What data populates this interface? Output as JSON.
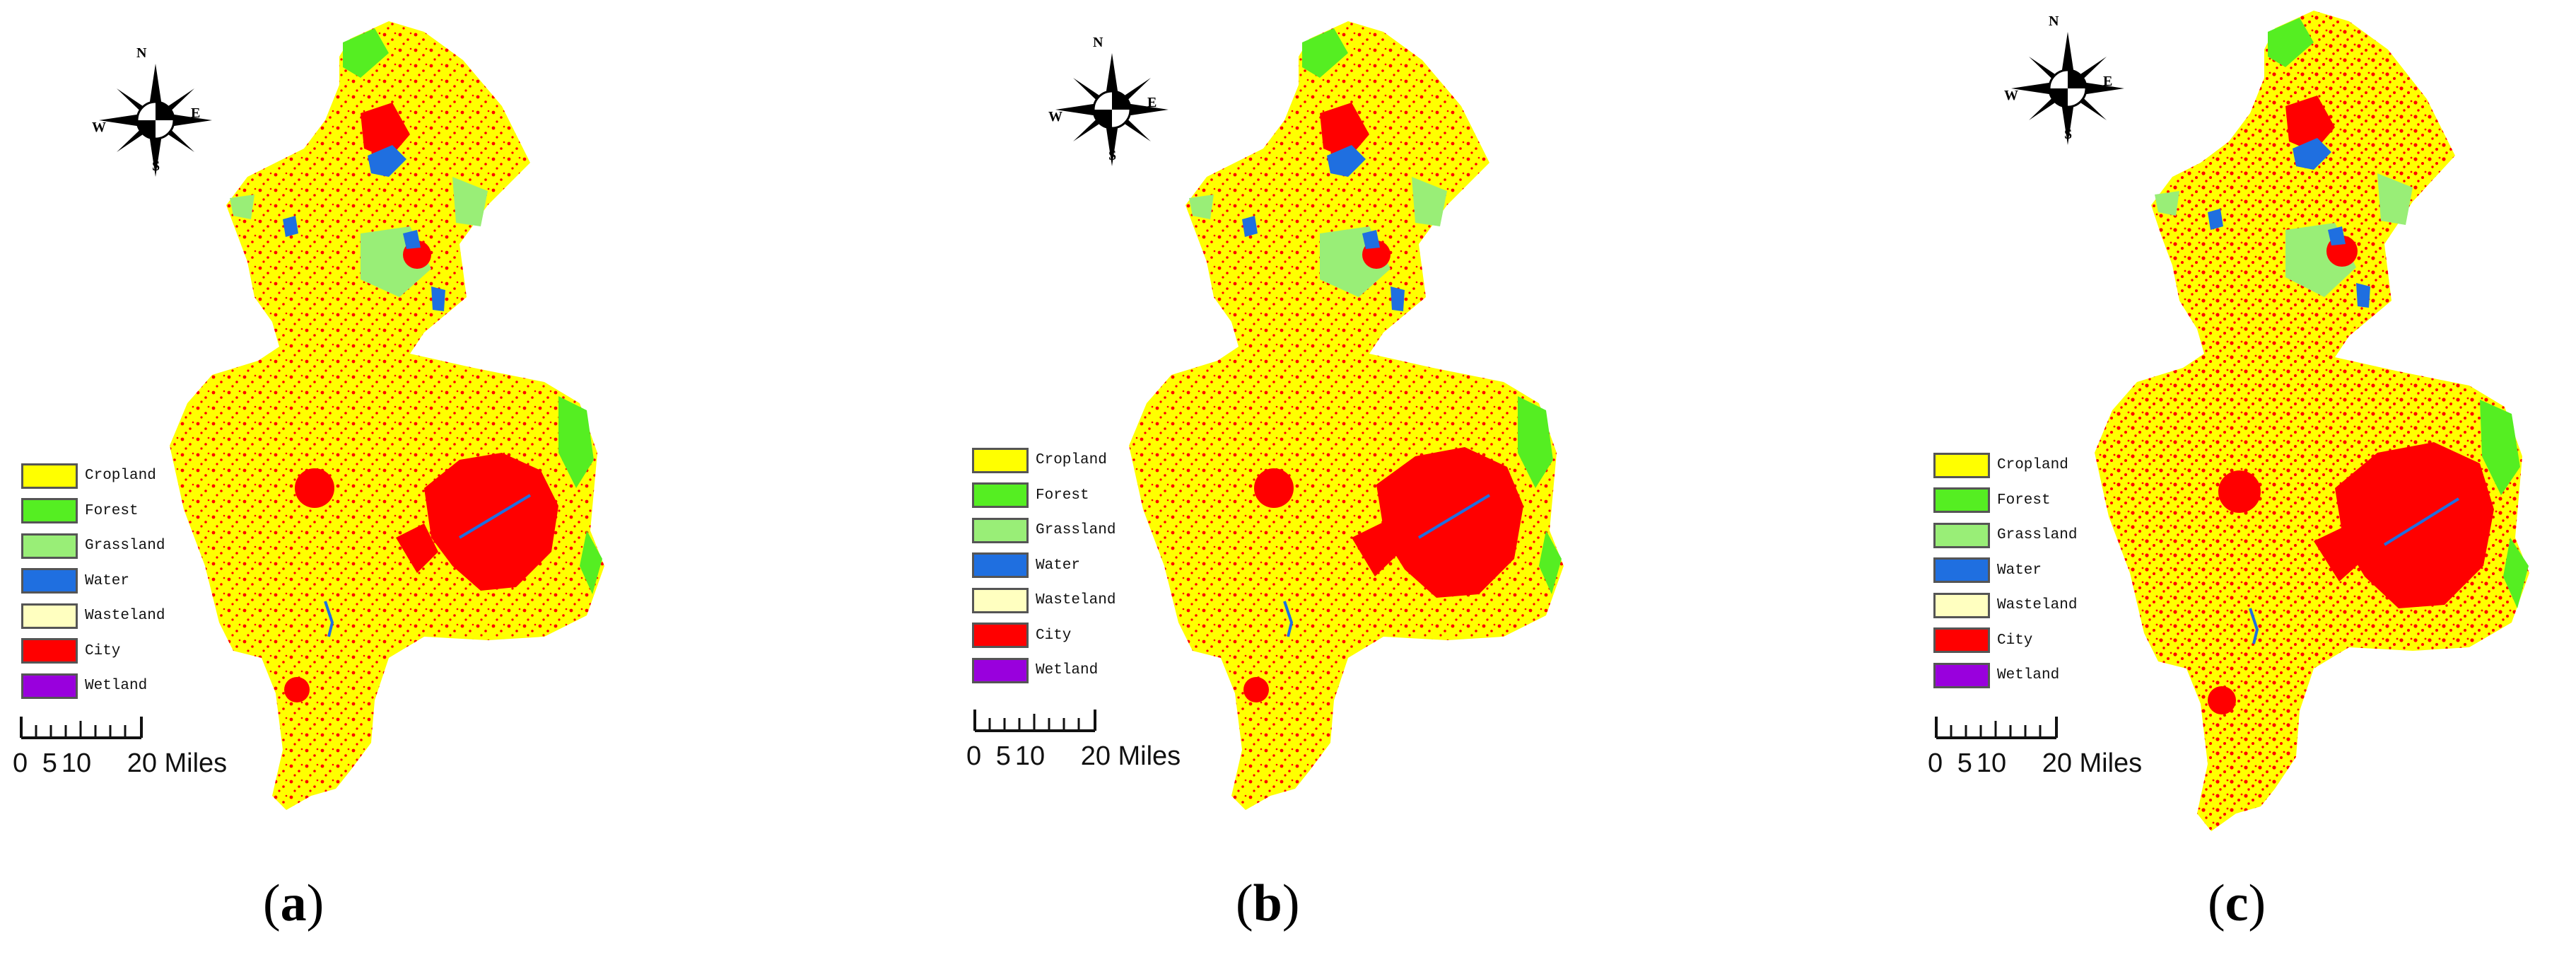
{
  "compass": {
    "n": "N",
    "s": "S",
    "e": "E",
    "w": "W"
  },
  "legend": [
    {
      "label": "Cropland",
      "color": "#ffff00"
    },
    {
      "label": "Forest",
      "color": "#55ee22"
    },
    {
      "label": "Grassland",
      "color": "#99ee77"
    },
    {
      "label": "Water",
      "color": "#1f6fe0"
    },
    {
      "label": "Wasteland",
      "color": "#ffffc0"
    },
    {
      "label": "City",
      "color": "#ff0000"
    },
    {
      "label": "Wetland",
      "color": "#9900dd"
    }
  ],
  "scale": {
    "labels": [
      "0",
      "5",
      "10",
      "20 Miles"
    ]
  },
  "panels": [
    {
      "caption_open": "(",
      "caption_letter": "a",
      "caption_close": ")"
    },
    {
      "caption_open": "(",
      "caption_letter": "b",
      "caption_close": ")"
    },
    {
      "caption_open": "(",
      "caption_letter": "c",
      "caption_close": ")"
    }
  ]
}
